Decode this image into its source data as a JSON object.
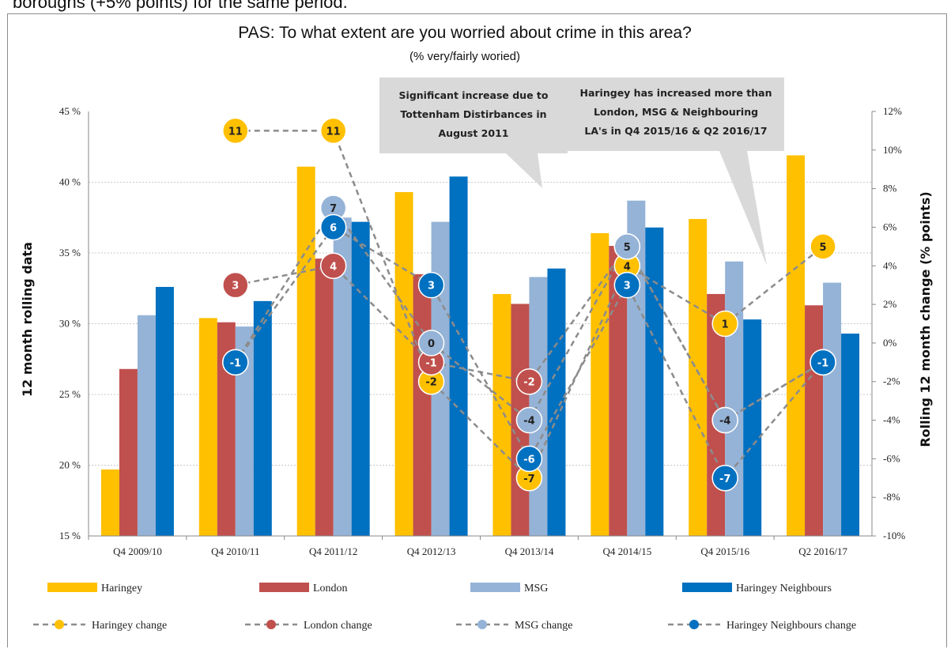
{
  "page": {
    "top_text": "boroughs (+5% points) for the same period."
  },
  "chart_data": {
    "type": "bar",
    "title": "PAS:  To what extent are you worried about crime in this area?",
    "subtitle": "(% very/fairly woried)",
    "ylabel": "12 month rolling data",
    "y2label": "Rolling 12 month change (% points)",
    "ylim": [
      15,
      45
    ],
    "y2lim": [
      -10,
      12
    ],
    "yticks": [
      "45 %",
      "40 %",
      "35 %",
      "30 %",
      "25 %",
      "20 %",
      "15 %"
    ],
    "y2ticks": [
      "12%",
      "10%",
      "8%",
      "6%",
      "4%",
      "2%",
      "0%",
      "-2%",
      "-4%",
      "-6%",
      "-8%",
      "-10%"
    ],
    "grid": true,
    "legend_position": "bottom",
    "categories": [
      "Q4 2009/10",
      "Q4 2010/11",
      "Q4 2011/12",
      "Q4 2012/13",
      "Q4 2013/14",
      "Q4 2014/15",
      "Q4 2015/16",
      "Q2 2016/17"
    ],
    "series": [
      {
        "name": "Haringey",
        "color": "#FFC000",
        "values": [
          19.7,
          30.4,
          41.1,
          39.3,
          32.1,
          36.4,
          37.4,
          41.9
        ]
      },
      {
        "name": "London",
        "color": "#C0504D",
        "values": [
          26.8,
          30.1,
          34.6,
          33.5,
          31.4,
          35.5,
          32.1,
          31.3
        ]
      },
      {
        "name": "MSG",
        "color": "#95B3D7",
        "values": [
          30.6,
          29.8,
          37.5,
          37.2,
          33.3,
          38.7,
          34.4,
          32.9
        ]
      },
      {
        "name": "Haringey Neighbours",
        "color": "#0070C0",
        "values": [
          32.6,
          31.6,
          37.2,
          40.4,
          33.9,
          36.8,
          30.3,
          29.3
        ]
      }
    ],
    "change_series": [
      {
        "name": "Haringey change",
        "color": "#FFC000",
        "text_color": "#222222",
        "points": [
          {
            "x": "Q4 2010/11",
            "y": 11
          },
          {
            "x": "Q4 2011/12",
            "y": 11
          },
          {
            "x": "Q4 2012/13",
            "y": -2
          },
          {
            "x": "Q4 2013/14",
            "y": -7
          },
          {
            "x": "Q4 2014/15",
            "y": 4
          },
          {
            "x": "Q4 2015/16",
            "y": 1
          },
          {
            "x": "Q2 2016/17",
            "y": 5
          }
        ]
      },
      {
        "name": "London change",
        "color": "#C0504D",
        "text_color": "#ffffff",
        "points": [
          {
            "x": "Q4 2010/11",
            "y": 3
          },
          {
            "x": "Q4 2011/12",
            "y": 4
          },
          {
            "x": "Q4 2012/13",
            "y": -1
          },
          {
            "x": "Q4 2013/14",
            "y": -2
          },
          {
            "x": "Q4 2014/15",
            "y": 5
          },
          {
            "x": "Q4 2015/16",
            "y": -4
          },
          {
            "x": "Q2 2016/17",
            "y": -1
          }
        ]
      },
      {
        "name": "MSG change",
        "color": "#95B3D7",
        "text_color": "#222222",
        "points": [
          {
            "x": "Q4 2010/11",
            "y": -1
          },
          {
            "x": "Q4 2011/12",
            "y": 7
          },
          {
            "x": "Q4 2012/13",
            "y": 0
          },
          {
            "x": "Q4 2013/14",
            "y": -4
          },
          {
            "x": "Q4 2014/15",
            "y": 5
          },
          {
            "x": "Q4 2015/16",
            "y": -4
          },
          {
            "x": "Q2 2016/17",
            "y": -1
          }
        ]
      },
      {
        "name": "Haringey Neighbours change",
        "color": "#0070C0",
        "text_color": "#ffffff",
        "points": [
          {
            "x": "Q4 2010/11",
            "y": -1
          },
          {
            "x": "Q4 2011/12",
            "y": 6
          },
          {
            "x": "Q4 2012/13",
            "y": 3
          },
          {
            "x": "Q4 2013/14",
            "y": -6
          },
          {
            "x": "Q4 2014/15",
            "y": 3
          },
          {
            "x": "Q4 2015/16",
            "y": -7
          },
          {
            "x": "Q2 2016/17",
            "y": -1
          }
        ]
      }
    ],
    "annotations": [
      {
        "id": "callout-tottenham",
        "lines": [
          "Significant increase  due to",
          "Tottenham Distirbances  in",
          "August 2011"
        ]
      },
      {
        "id": "callout-haringey",
        "lines": [
          "Haringey has increased more than",
          "London,  MSG &  Neighbouring",
          "LA's in Q4 2015/16 & Q2 2016/17"
        ]
      }
    ]
  }
}
